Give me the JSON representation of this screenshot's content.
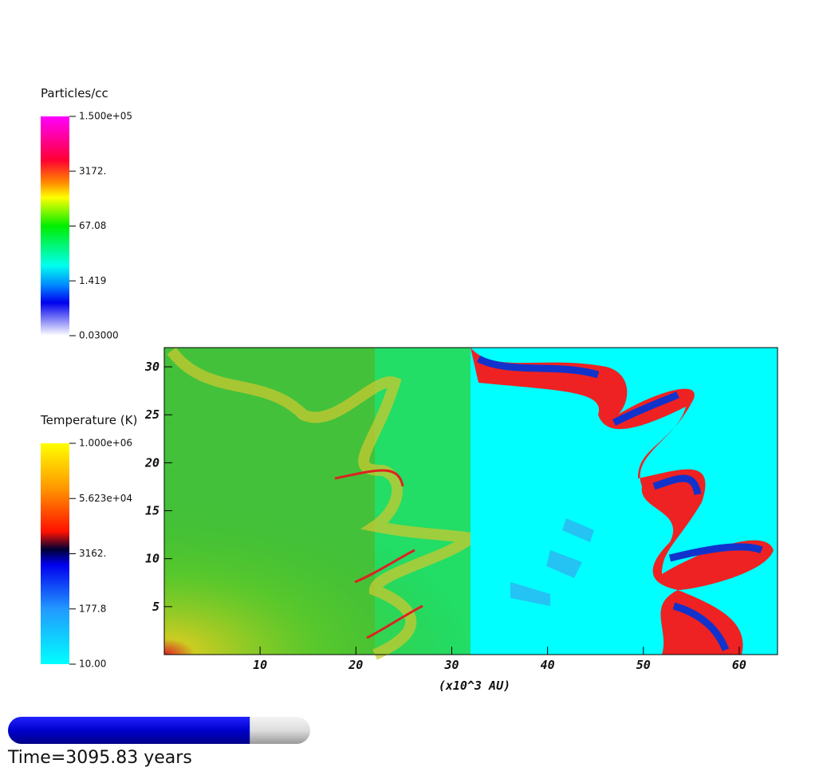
{
  "density_colorbar": {
    "title": "Particles/cc",
    "ticks": [
      "1.500e+05",
      "3172.",
      "67.08",
      "1.419",
      "0.03000"
    ]
  },
  "temperature_colorbar": {
    "title": "Temperature (K)",
    "ticks": [
      "1.000e+06",
      "5.623e+04",
      "3162.",
      "177.8",
      "10.00"
    ]
  },
  "plot": {
    "x_label": "(x10^3 AU)",
    "xlim": [
      0,
      64
    ],
    "ylim": [
      0,
      32
    ],
    "xticks": [
      10,
      20,
      30,
      40,
      50,
      60
    ],
    "yticks": [
      5,
      10,
      15,
      20,
      25,
      30
    ]
  },
  "time_label": "Time=3095.83 years",
  "progress": 0.8
}
